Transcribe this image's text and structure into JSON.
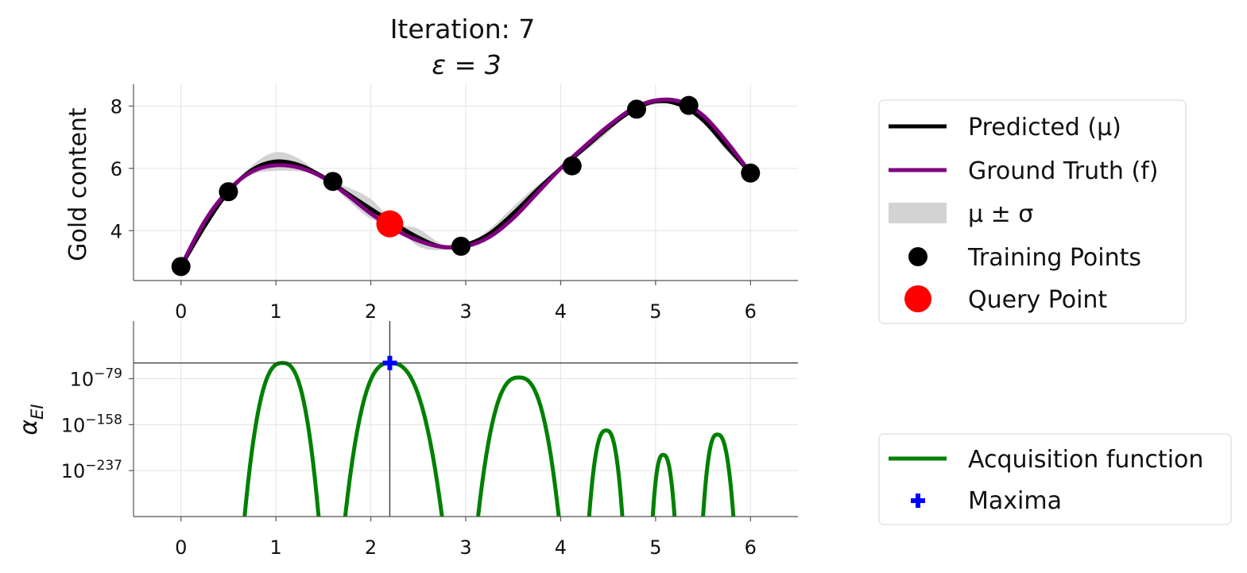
{
  "title": {
    "line1": "Iteration: 7",
    "line2": "ε = 3"
  },
  "chart_data": [
    {
      "type": "line",
      "ylabel": "Gold content",
      "xlim": [
        -0.5,
        6.5
      ],
      "ylim": [
        2.4,
        8.7
      ],
      "x_ticks": [
        0,
        1,
        2,
        3,
        4,
        5,
        6
      ],
      "x_tick_labels": [
        "0",
        "1",
        "2",
        "3",
        "4",
        "5",
        "6"
      ],
      "y_ticks": [
        4,
        6,
        8
      ],
      "y_tick_labels": [
        "4",
        "6",
        "8"
      ],
      "grid": true,
      "series": [
        {
          "name": "Predicted (μ)",
          "color": "#000000",
          "x": [
            0,
            0.25,
            0.5,
            0.75,
            1.0,
            1.25,
            1.5,
            1.75,
            2.0,
            2.25,
            2.5,
            2.75,
            3.0,
            3.25,
            3.5,
            3.75,
            4.0,
            4.25,
            4.5,
            4.75,
            5.0,
            5.25,
            5.5,
            5.75,
            6.0
          ],
          "y": [
            2.85,
            4.15,
            5.25,
            5.95,
            6.22,
            6.1,
            5.72,
            5.2,
            4.7,
            4.22,
            3.78,
            3.48,
            3.55,
            3.9,
            4.55,
            5.3,
            6.0,
            6.65,
            7.3,
            7.85,
            8.15,
            8.05,
            7.55,
            6.7,
            5.85
          ]
        },
        {
          "name": "Ground Truth (f)",
          "color": "#800080",
          "x": [
            0,
            0.25,
            0.5,
            0.75,
            1.0,
            1.25,
            1.5,
            1.75,
            2.0,
            2.25,
            2.5,
            2.75,
            3.0,
            3.25,
            3.5,
            3.75,
            4.0,
            4.25,
            4.5,
            4.75,
            5.0,
            5.25,
            5.5,
            5.75,
            6.0
          ],
          "y": [
            2.85,
            4.3,
            5.3,
            5.9,
            6.1,
            6.02,
            5.7,
            5.15,
            4.55,
            4.05,
            3.68,
            3.48,
            3.5,
            3.8,
            4.4,
            5.2,
            6.0,
            6.7,
            7.35,
            7.9,
            8.18,
            8.15,
            7.7,
            6.85,
            5.85
          ]
        }
      ],
      "band": {
        "name": "μ ± σ",
        "color": "#d3d3d3",
        "sigma": [
          0,
          0.08,
          0,
          0.15,
          0.3,
          0.2,
          0,
          0.2,
          0.32,
          0.05,
          0.28,
          0.1,
          0,
          0.15,
          0.22,
          0.15,
          0,
          0.12,
          0.15,
          0,
          0.1,
          0,
          0.08,
          0.15,
          0
        ]
      },
      "training_points": {
        "name": "Training Points",
        "color": "#000000",
        "x": [
          0,
          0.5,
          1.6,
          2.95,
          4.12,
          4.8,
          5.35,
          6.0
        ],
        "y": [
          2.85,
          5.25,
          5.58,
          3.5,
          6.08,
          7.9,
          8.02,
          5.85
        ]
      },
      "query_point": {
        "name": "Query Point",
        "color": "#ff0000",
        "x": 2.2,
        "y": 4.22
      },
      "legend_position": "right"
    },
    {
      "type": "line",
      "ylabel": "α_EI",
      "ylabel_main": "α",
      "ylabel_sub": "EI",
      "y_scale": "log",
      "xlim": [
        -0.5,
        6.5
      ],
      "ylim_log10": [
        -316,
        20
      ],
      "x_ticks": [
        0,
        1,
        2,
        3,
        4,
        5,
        6
      ],
      "x_tick_labels": [
        "0",
        "1",
        "2",
        "3",
        "4",
        "5",
        "6"
      ],
      "y_ticks_log10": [
        -79,
        -158,
        -237
      ],
      "y_tick_labels": [
        {
          "base": "10",
          "exp": "−79"
        },
        {
          "base": "10",
          "exp": "−158"
        },
        {
          "base": "10",
          "exp": "−237"
        }
      ],
      "grid": true,
      "series": [
        {
          "name": "Acquisition function",
          "color": "#008000",
          "lobes_log10": [
            {
              "x_start": 0.67,
              "x_end": 1.45,
              "x_peak": 1.07,
              "peak": -52
            },
            {
              "x_start": 1.73,
              "x_end": 2.75,
              "x_peak": 2.2,
              "peak": -52
            },
            {
              "x_start": 3.13,
              "x_end": 3.98,
              "x_peak": 3.56,
              "peak": -77
            },
            {
              "x_start": 4.3,
              "x_end": 4.65,
              "x_peak": 4.48,
              "peak": -168
            },
            {
              "x_start": 4.97,
              "x_end": 5.2,
              "x_peak": 5.08,
              "peak": -210
            },
            {
              "x_start": 5.5,
              "x_end": 5.82,
              "x_peak": 5.65,
              "peak": -175
            }
          ]
        }
      ],
      "maxima": {
        "name": "Maxima",
        "color": "#0000ff",
        "x": 2.2,
        "y_log10": -52
      },
      "legend_position": "right"
    }
  ]
}
